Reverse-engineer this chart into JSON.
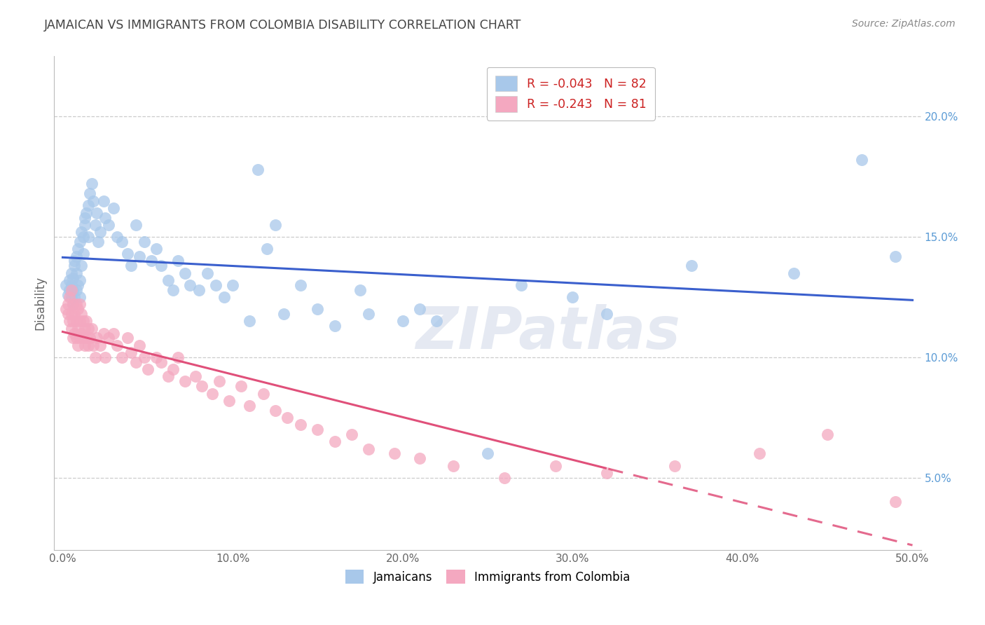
{
  "title": "JAMAICAN VS IMMIGRANTS FROM COLOMBIA DISABILITY CORRELATION CHART",
  "source": "Source: ZipAtlas.com",
  "ylabel": "Disability",
  "xlabel_ticks": [
    "0.0%",
    "10.0%",
    "20.0%",
    "30.0%",
    "40.0%",
    "50.0%"
  ],
  "xlabel_vals": [
    0.0,
    0.1,
    0.2,
    0.3,
    0.4,
    0.5
  ],
  "ylabel_ticks": [
    "5.0%",
    "10.0%",
    "15.0%",
    "20.0%"
  ],
  "ylabel_vals": [
    0.05,
    0.1,
    0.15,
    0.2
  ],
  "xlim": [
    -0.005,
    0.505
  ],
  "ylim": [
    0.02,
    0.225
  ],
  "jamaican_color": "#a8c8ea",
  "colombia_color": "#f4a8c0",
  "line_color_jamaican": "#3a5fcd",
  "line_color_colombia": "#e0507a",
  "watermark": "ZIPatlas",
  "background_color": "#ffffff",
  "grid_color": "#cccccc",
  "right_tick_color": "#5b9bd5",
  "title_color": "#444444",
  "r1": -0.043,
  "n1": 82,
  "r2": -0.243,
  "n2": 81,
  "jamaican_x": [
    0.002,
    0.003,
    0.004,
    0.004,
    0.005,
    0.005,
    0.005,
    0.006,
    0.006,
    0.006,
    0.007,
    0.007,
    0.007,
    0.008,
    0.008,
    0.008,
    0.009,
    0.009,
    0.01,
    0.01,
    0.01,
    0.011,
    0.011,
    0.012,
    0.012,
    0.013,
    0.013,
    0.014,
    0.015,
    0.015,
    0.016,
    0.017,
    0.018,
    0.019,
    0.02,
    0.021,
    0.022,
    0.024,
    0.025,
    0.027,
    0.03,
    0.032,
    0.035,
    0.038,
    0.04,
    0.043,
    0.045,
    0.048,
    0.052,
    0.055,
    0.058,
    0.062,
    0.065,
    0.068,
    0.072,
    0.075,
    0.08,
    0.085,
    0.09,
    0.095,
    0.1,
    0.11,
    0.115,
    0.12,
    0.125,
    0.13,
    0.14,
    0.15,
    0.16,
    0.175,
    0.18,
    0.2,
    0.21,
    0.22,
    0.25,
    0.27,
    0.3,
    0.32,
    0.37,
    0.43,
    0.47,
    0.49
  ],
  "jamaican_y": [
    0.13,
    0.126,
    0.128,
    0.132,
    0.125,
    0.13,
    0.135,
    0.122,
    0.128,
    0.133,
    0.138,
    0.125,
    0.14,
    0.128,
    0.135,
    0.142,
    0.13,
    0.145,
    0.125,
    0.132,
    0.148,
    0.138,
    0.152,
    0.143,
    0.15,
    0.155,
    0.158,
    0.16,
    0.15,
    0.163,
    0.168,
    0.172,
    0.165,
    0.155,
    0.16,
    0.148,
    0.152,
    0.165,
    0.158,
    0.155,
    0.162,
    0.15,
    0.148,
    0.143,
    0.138,
    0.155,
    0.142,
    0.148,
    0.14,
    0.145,
    0.138,
    0.132,
    0.128,
    0.14,
    0.135,
    0.13,
    0.128,
    0.135,
    0.13,
    0.125,
    0.13,
    0.115,
    0.178,
    0.145,
    0.155,
    0.118,
    0.13,
    0.12,
    0.113,
    0.128,
    0.118,
    0.115,
    0.12,
    0.115,
    0.06,
    0.13,
    0.125,
    0.118,
    0.138,
    0.135,
    0.182,
    0.142
  ],
  "colombia_x": [
    0.002,
    0.003,
    0.003,
    0.004,
    0.004,
    0.005,
    0.005,
    0.005,
    0.006,
    0.006,
    0.006,
    0.007,
    0.007,
    0.008,
    0.008,
    0.008,
    0.009,
    0.009,
    0.009,
    0.01,
    0.01,
    0.01,
    0.011,
    0.011,
    0.012,
    0.012,
    0.013,
    0.013,
    0.014,
    0.014,
    0.015,
    0.015,
    0.016,
    0.017,
    0.018,
    0.019,
    0.02,
    0.022,
    0.024,
    0.025,
    0.027,
    0.03,
    0.032,
    0.035,
    0.038,
    0.04,
    0.043,
    0.045,
    0.048,
    0.05,
    0.055,
    0.058,
    0.062,
    0.065,
    0.068,
    0.072,
    0.078,
    0.082,
    0.088,
    0.092,
    0.098,
    0.105,
    0.11,
    0.118,
    0.125,
    0.132,
    0.14,
    0.15,
    0.16,
    0.17,
    0.18,
    0.195,
    0.21,
    0.23,
    0.26,
    0.29,
    0.32,
    0.36,
    0.41,
    0.45,
    0.49
  ],
  "colombia_y": [
    0.12,
    0.118,
    0.122,
    0.115,
    0.125,
    0.112,
    0.118,
    0.128,
    0.108,
    0.115,
    0.122,
    0.11,
    0.118,
    0.108,
    0.115,
    0.122,
    0.105,
    0.112,
    0.12,
    0.108,
    0.115,
    0.122,
    0.11,
    0.118,
    0.108,
    0.115,
    0.105,
    0.112,
    0.108,
    0.115,
    0.105,
    0.112,
    0.108,
    0.112,
    0.105,
    0.1,
    0.108,
    0.105,
    0.11,
    0.1,
    0.108,
    0.11,
    0.105,
    0.1,
    0.108,
    0.102,
    0.098,
    0.105,
    0.1,
    0.095,
    0.1,
    0.098,
    0.092,
    0.095,
    0.1,
    0.09,
    0.092,
    0.088,
    0.085,
    0.09,
    0.082,
    0.088,
    0.08,
    0.085,
    0.078,
    0.075,
    0.072,
    0.07,
    0.065,
    0.068,
    0.062,
    0.06,
    0.058,
    0.055,
    0.05,
    0.055,
    0.052,
    0.055,
    0.06,
    0.068,
    0.04
  ]
}
